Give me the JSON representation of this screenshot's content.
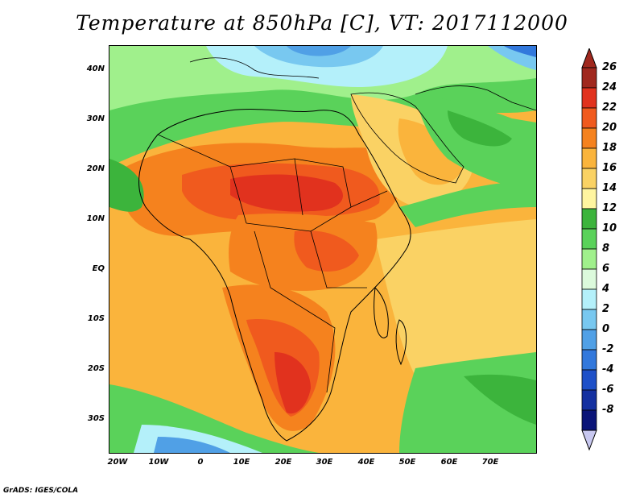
{
  "title": "Temperature at 850hPa [C], VT: 2017112000",
  "footer": "GrADS: IGES/COLA",
  "map": {
    "lat_labels": [
      "40N",
      "30N",
      "20N",
      "10N",
      "EQ",
      "10S",
      "20S",
      "30S"
    ],
    "lon_labels": [
      "20W",
      "10W",
      "0",
      "10E",
      "20E",
      "30E",
      "40E",
      "50E",
      "60E",
      "70E"
    ]
  },
  "colorbar": {
    "labels": [
      "26",
      "24",
      "22",
      "20",
      "18",
      "16",
      "14",
      "12",
      "10",
      "8",
      "6",
      "4",
      "2",
      "0",
      "-2",
      "-4",
      "-6",
      "-8"
    ],
    "colors": [
      "#a0281e",
      "#e1321e",
      "#f05a1e",
      "#f5821e",
      "#fab43c",
      "#fad264",
      "#fff5a0",
      "#3cb43c",
      "#5ad25a",
      "#a0f08c",
      "#dcfadc",
      "#b4f0fa",
      "#78c8f0",
      "#50a0e6",
      "#3278dc",
      "#1e50c8",
      "#1430a0",
      "#0a1478"
    ],
    "top_arrow_color": "#a0281e",
    "bottom_arrow_color": "#c8c8f0"
  }
}
